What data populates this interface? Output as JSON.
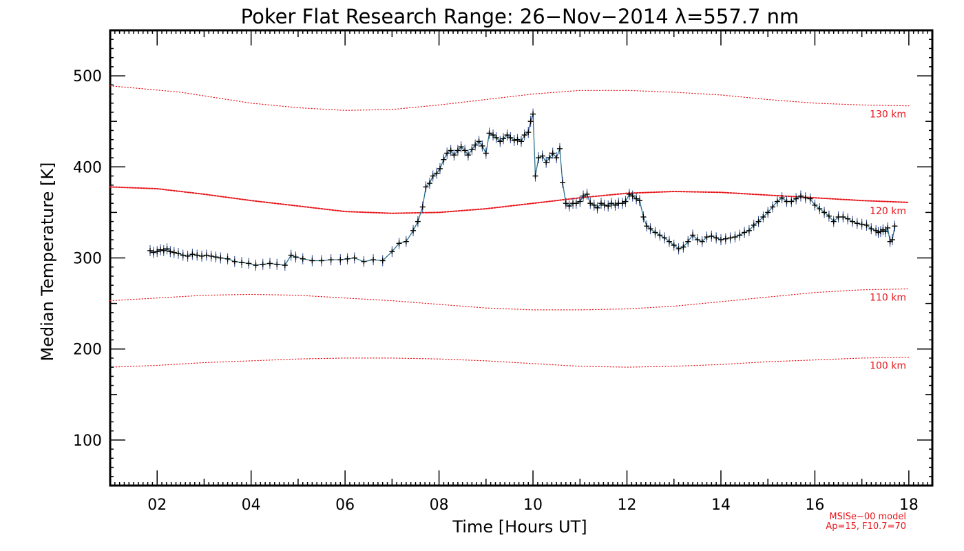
{
  "chart_data": {
    "type": "line",
    "title": "Poker Flat Research Range: 26−Nov−2014 λ=557.7 nm",
    "xlabel": "Time [Hours UT]",
    "ylabel": "Median Temperature [K]",
    "xlim": [
      1.0,
      18.5
    ],
    "ylim": [
      50,
      550
    ],
    "x_ticks": [
      2,
      4,
      6,
      8,
      10,
      12,
      14,
      16,
      18
    ],
    "x_tick_labels": [
      "02",
      "04",
      "06",
      "08",
      "10",
      "12",
      "14",
      "16",
      "18"
    ],
    "y_ticks": [
      100,
      200,
      300,
      400,
      500
    ],
    "y_tick_labels": [
      "100",
      "200",
      "300",
      "400",
      "500"
    ],
    "grid": false,
    "series": [
      {
        "marker": "plus",
        "color": "#1f3f8f",
        "x": [
          1.85,
          1.92,
          2.0,
          2.07,
          2.14,
          2.21,
          2.28,
          2.36,
          2.45,
          2.55,
          2.65,
          2.75,
          2.85,
          2.95,
          3.05,
          3.15,
          3.25,
          3.35,
          3.5,
          3.65,
          3.8,
          3.95,
          4.1,
          4.25,
          4.4,
          4.55,
          4.72,
          4.85,
          4.95,
          5.1,
          5.3,
          5.5,
          5.7,
          5.9,
          6.05,
          6.2,
          6.4,
          6.6,
          6.8,
          7.0,
          7.15,
          7.3,
          7.45,
          7.55,
          7.65,
          7.72,
          7.8,
          7.87,
          7.95,
          8.02,
          8.1,
          8.17,
          8.25,
          8.32,
          8.4,
          8.47,
          8.55,
          8.62,
          8.7,
          8.77,
          8.85,
          8.92,
          9.0,
          9.07,
          9.15,
          9.22,
          9.3,
          9.37,
          9.45,
          9.52,
          9.6,
          9.67,
          9.75,
          9.82,
          9.9,
          9.95,
          10.0,
          10.05,
          10.12,
          10.2,
          10.28,
          10.35,
          10.42,
          10.5,
          10.57,
          10.63,
          10.7,
          10.77,
          10.85,
          10.92,
          11.0,
          11.07,
          11.15,
          11.22,
          11.3,
          11.37,
          11.45,
          11.52,
          11.6,
          11.67,
          11.75,
          11.82,
          11.9,
          11.97,
          12.05,
          12.12,
          12.2,
          12.27,
          12.35,
          12.42,
          12.5,
          12.6,
          12.7,
          12.8,
          12.9,
          13.0,
          13.1,
          13.2,
          13.3,
          13.4,
          13.5,
          13.6,
          13.7,
          13.8,
          13.9,
          14.0,
          14.1,
          14.2,
          14.3,
          14.4,
          14.5,
          14.6,
          14.7,
          14.8,
          14.9,
          15.0,
          15.1,
          15.2,
          15.3,
          15.4,
          15.5,
          15.6,
          15.7,
          15.8,
          15.9,
          16.0,
          16.1,
          16.2,
          16.3,
          16.4,
          16.5,
          16.6,
          16.7,
          16.8,
          16.9,
          17.0,
          17.1,
          17.2,
          17.3,
          17.35,
          17.4,
          17.45,
          17.5,
          17.55,
          17.6,
          17.65,
          17.7
        ],
        "y": [
          308,
          306,
          307,
          309,
          308,
          310,
          307,
          306,
          305,
          303,
          302,
          304,
          303,
          302,
          303,
          302,
          301,
          300,
          299,
          296,
          295,
          294,
          292,
          293,
          294,
          293,
          292,
          303,
          301,
          299,
          297,
          297,
          298,
          298,
          299,
          300,
          296,
          298,
          297,
          307,
          316,
          318,
          330,
          340,
          356,
          378,
          382,
          390,
          393,
          398,
          408,
          415,
          418,
          413,
          418,
          422,
          418,
          413,
          419,
          424,
          428,
          423,
          415,
          437,
          435,
          432,
          428,
          431,
          435,
          432,
          429,
          430,
          428,
          435,
          438,
          450,
          458,
          390,
          410,
          412,
          405,
          410,
          415,
          410,
          420,
          383,
          360,
          357,
          360,
          360,
          362,
          368,
          370,
          360,
          358,
          355,
          360,
          358,
          357,
          360,
          358,
          360,
          360,
          362,
          370,
          368,
          365,
          363,
          345,
          335,
          332,
          328,
          325,
          322,
          318,
          314,
          310,
          312,
          318,
          325,
          320,
          318,
          323,
          324,
          322,
          320,
          321,
          322,
          323,
          325,
          328,
          330,
          336,
          340,
          345,
          350,
          356,
          362,
          366,
          362,
          362,
          365,
          368,
          366,
          365,
          358,
          354,
          350,
          346,
          340,
          345,
          345,
          343,
          340,
          338,
          337,
          336,
          332,
          330,
          328,
          329,
          331,
          329,
          333,
          318,
          320,
          335
        ]
      }
    ],
    "model_curves": [
      {
        "label": "130 km",
        "x": [
          1.0,
          2.5,
          4.0,
          5.0,
          6.0,
          7.0,
          8.0,
          9.0,
          10.0,
          11.0,
          12.0,
          13.0,
          14.0,
          15.0,
          16.0,
          17.0,
          18.0
        ],
        "y": [
          489,
          482,
          470,
          465,
          462,
          463,
          468,
          474,
          480,
          484,
          484,
          482,
          479,
          474,
          470,
          468,
          467
        ]
      },
      {
        "label": "120 km",
        "x": [
          1.0,
          2.0,
          3.0,
          4.0,
          5.0,
          6.0,
          7.0,
          8.0,
          9.0,
          10.0,
          11.0,
          12.0,
          13.0,
          14.0,
          15.0,
          16.0,
          17.0,
          18.0
        ],
        "y": [
          378,
          376,
          370,
          363,
          357,
          351,
          349,
          350,
          354,
          360,
          366,
          371,
          373,
          372,
          369,
          366,
          363,
          361
        ]
      },
      {
        "label": "110 km",
        "x": [
          1.0,
          2.0,
          3.0,
          4.0,
          5.0,
          6.0,
          7.0,
          8.0,
          9.0,
          10.0,
          11.0,
          12.0,
          13.0,
          14.0,
          15.0,
          16.0,
          17.0,
          18.0
        ],
        "y": [
          253,
          256,
          259,
          260,
          259,
          256,
          253,
          249,
          245,
          243,
          243,
          244,
          247,
          252,
          257,
          262,
          265,
          266
        ]
      },
      {
        "label": "100 km",
        "x": [
          1.0,
          2.0,
          3.0,
          4.0,
          5.0,
          6.0,
          7.0,
          8.0,
          9.0,
          10.0,
          11.0,
          12.0,
          13.0,
          14.0,
          15.0,
          16.0,
          17.0,
          18.0
        ],
        "y": [
          180,
          182,
          185,
          187,
          189,
          190,
          190,
          189,
          187,
          184,
          181,
          180,
          181,
          183,
          186,
          188,
          190,
          191
        ]
      }
    ],
    "model_note": [
      "MSISe−00 model",
      "Ap=15, F10.7=70"
    ]
  }
}
